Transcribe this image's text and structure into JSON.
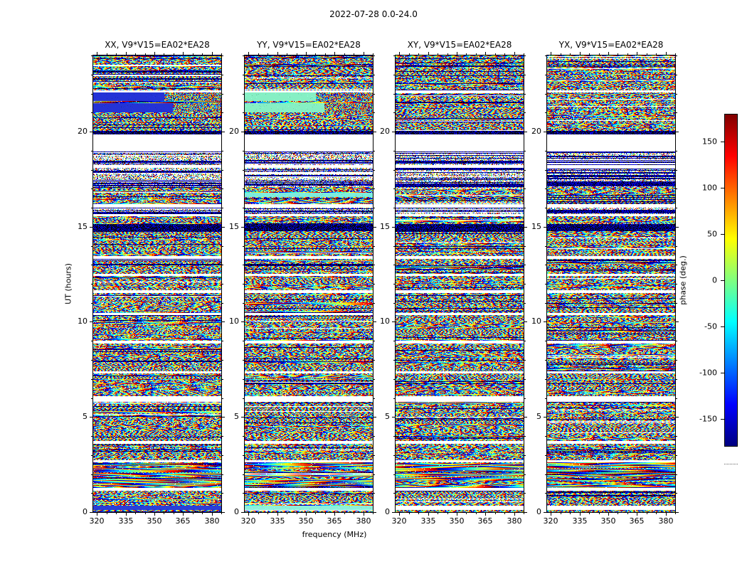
{
  "chart_data": {
    "type": "heatmap",
    "title": "2022-07-28 0.0-24.0",
    "xlabel": "frequency (MHz)",
    "ylabel": "UT (hours)",
    "x_range_mhz": [
      318,
      385
    ],
    "x_ticks_mhz": [
      320,
      335,
      350,
      365,
      380
    ],
    "x_minor_step_mhz": 5,
    "y_range_hours": [
      0,
      24
    ],
    "y_ticks_hours": [
      0,
      5,
      10,
      15,
      20
    ],
    "y_minor_step_hours": 1,
    "colormap": "jet",
    "colorbar": {
      "label": "phase (deg.)",
      "range_deg": [
        -180,
        180
      ],
      "ticks_deg": [
        150,
        100,
        50,
        0,
        -50,
        -100,
        -150
      ]
    },
    "panels": [
      {
        "label": "XX",
        "title": "XX, V9*V15=EA02*EA28",
        "seed": 101
      },
      {
        "label": "YY",
        "title": "YY, V9*V15=EA02*EA28",
        "seed": 202
      },
      {
        "label": "XY",
        "title": "XY, V9*V15=EA02*EA28",
        "seed": 303
      },
      {
        "label": "YX",
        "title": "YX, V9*V15=EA02*EA28",
        "seed": 404
      }
    ],
    "bands": [
      {
        "ut": [
          0.0,
          0.12
        ],
        "kind": "mixed"
      },
      {
        "ut": [
          0.12,
          0.34
        ],
        "kind": "gap",
        "overrides": {
          "XX": {
            "kind": "solid",
            "color": "#2a3fd8"
          },
          "YY": {
            "kind": "solid",
            "color": "#8ef0dc"
          }
        }
      },
      {
        "ut": [
          0.34,
          1.12
        ],
        "kind": "noise"
      },
      {
        "ut": [
          1.12,
          1.26
        ],
        "kind": "gap"
      },
      {
        "ut": [
          1.26,
          2.6
        ],
        "kind": "fringe"
      },
      {
        "ut": [
          2.6,
          2.72
        ],
        "kind": "gap"
      },
      {
        "ut": [
          2.72,
          3.6
        ],
        "kind": "noise"
      },
      {
        "ut": [
          3.6,
          3.72
        ],
        "kind": "gap"
      },
      {
        "ut": [
          3.72,
          5.0
        ],
        "kind": "noise"
      },
      {
        "ut": [
          5.0,
          5.15
        ],
        "kind": "mixed"
      },
      {
        "ut": [
          5.15,
          5.8
        ],
        "kind": "noise"
      },
      {
        "ut": [
          5.8,
          6.1
        ],
        "kind": "gap"
      },
      {
        "ut": [
          6.1,
          7.3
        ],
        "kind": "noise"
      },
      {
        "ut": [
          7.3,
          7.42
        ],
        "kind": "gap"
      },
      {
        "ut": [
          7.42,
          8.85
        ],
        "kind": "noise"
      },
      {
        "ut": [
          8.85,
          9.0
        ],
        "kind": "gap"
      },
      {
        "ut": [
          9.0,
          10.35
        ],
        "kind": "noise"
      },
      {
        "ut": [
          10.35,
          10.48
        ],
        "kind": "gap"
      },
      {
        "ut": [
          10.48,
          11.5
        ],
        "kind": "noise"
      },
      {
        "ut": [
          11.5,
          11.65
        ],
        "kind": "gap"
      },
      {
        "ut": [
          11.65,
          12.4
        ],
        "kind": "noise"
      },
      {
        "ut": [
          12.4,
          12.52
        ],
        "kind": "gap"
      },
      {
        "ut": [
          12.52,
          13.3
        ],
        "kind": "mixed"
      },
      {
        "ut": [
          13.3,
          13.45
        ],
        "kind": "gap"
      },
      {
        "ut": [
          13.45,
          14.75
        ],
        "kind": "noise"
      },
      {
        "ut": [
          14.75,
          15.15
        ],
        "kind": "dark"
      },
      {
        "ut": [
          15.15,
          15.55
        ],
        "kind": "noise"
      },
      {
        "ut": [
          15.55,
          15.68
        ],
        "kind": "gap"
      },
      {
        "ut": [
          15.68,
          16.0
        ],
        "kind": "stripes"
      },
      {
        "ut": [
          16.0,
          16.2
        ],
        "kind": "gap"
      },
      {
        "ut": [
          16.2,
          16.55
        ],
        "kind": "noise"
      },
      {
        "ut": [
          16.55,
          16.8
        ],
        "kind": "noise",
        "overrides": {
          "YY": {
            "kind": "solid",
            "color": "#7deede"
          }
        }
      },
      {
        "ut": [
          16.8,
          17.1
        ],
        "kind": "noise"
      },
      {
        "ut": [
          17.1,
          18.1
        ],
        "kind": "stripes"
      },
      {
        "ut": [
          18.1,
          18.25
        ],
        "kind": "gap"
      },
      {
        "ut": [
          18.25,
          18.95
        ],
        "kind": "stripes"
      },
      {
        "ut": [
          18.95,
          19.85
        ],
        "kind": "gap"
      },
      {
        "ut": [
          19.85,
          20.05
        ],
        "kind": "dark"
      },
      {
        "ut": [
          20.05,
          21.0
        ],
        "kind": "noise"
      },
      {
        "ut": [
          21.0,
          21.48
        ],
        "kind": "noise",
        "overrides": {
          "XX": {
            "kind": "solid",
            "color": "#2433d6",
            "noise_from": 0.62
          },
          "YY": {
            "kind": "solid",
            "color": "#86efc4",
            "noise_from": 0.62
          }
        }
      },
      {
        "ut": [
          21.48,
          21.6
        ],
        "kind": "noise"
      },
      {
        "ut": [
          21.6,
          22.05
        ],
        "kind": "noise",
        "overrides": {
          "XX": {
            "kind": "solid",
            "color": "#2433d6",
            "noise_from": 0.55
          },
          "YY": {
            "kind": "solid",
            "color": "#86efc4",
            "noise_from": 0.55
          }
        }
      },
      {
        "ut": [
          22.05,
          22.18
        ],
        "kind": "gap"
      },
      {
        "ut": [
          22.18,
          24.01
        ],
        "kind": "mixed"
      }
    ]
  }
}
